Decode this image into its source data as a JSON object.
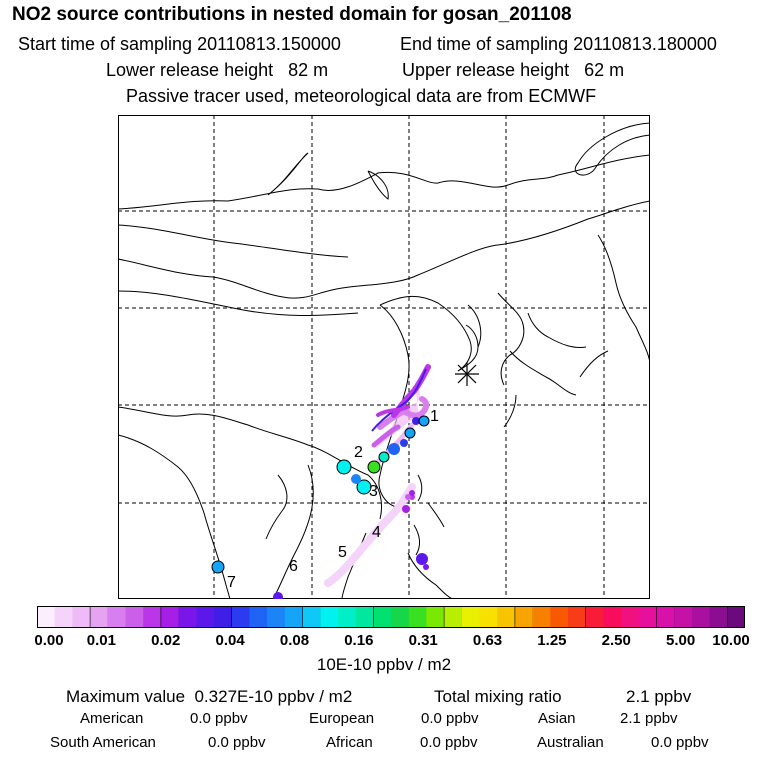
{
  "header": {
    "title": "NO2 source contributions in nested domain for gosan_201108",
    "start_label": "Start time of sampling 20110813.150000",
    "end_label": "End time of sampling 20110813.180000",
    "lower_label": "Lower release height   82 m",
    "upper_label": "Upper release height   62 m",
    "tracer_note": "Passive tracer used, meteorological data are from ECMWF"
  },
  "map": {
    "receptor_marker": "asterisk-icon",
    "source_labels": [
      "1",
      "2",
      "3",
      "4",
      "5",
      "6",
      "7"
    ]
  },
  "colorbar": {
    "ticks": [
      "0.00",
      "0.01",
      "0.02",
      "0.04",
      "0.08",
      "0.16",
      "0.31",
      "0.63",
      "1.25",
      "2.50",
      "5.00",
      "10.00"
    ],
    "colors": [
      "#fbeefd",
      "#f5d4fa",
      "#eebbf6",
      "#e6a3f2",
      "#d97eee",
      "#cc5fe9",
      "#bb36e8",
      "#a51fe6",
      "#7a16e8",
      "#5c18ea",
      "#3f1fe8",
      "#2b3cf0",
      "#1f64f4",
      "#1b84f6",
      "#14a5f8",
      "#0fc8f8",
      "#00f2f0",
      "#00eec8",
      "#00e8a0",
      "#00e070",
      "#16d64a",
      "#38e020",
      "#7ae800",
      "#b8ee00",
      "#e8f000",
      "#f8e000",
      "#f8c400",
      "#f8a400",
      "#f88000",
      "#f85800",
      "#f83c18",
      "#f81c38",
      "#f80c5c",
      "#f01080",
      "#e6109c",
      "#d812a8",
      "#c412a6",
      "#aa10a0",
      "#8c0c92",
      "#6a0a7c"
    ],
    "units_label": "10E-10 ppbv / m2"
  },
  "summary": {
    "max_label": "Maximum value  0.327E-10 ppbv / m2",
    "total_label": "Total mixing ratio",
    "total_value": "2.1 ppbv",
    "regions": [
      {
        "name": "American",
        "value": "0.0 ppbv"
      },
      {
        "name": "European",
        "value": "0.0 ppbv"
      },
      {
        "name": "Asian",
        "value": "2.1 ppbv"
      },
      {
        "name": "South American",
        "value": "0.0 ppbv"
      },
      {
        "name": "African",
        "value": "0.0 ppbv"
      },
      {
        "name": "Australian",
        "value": "0.0 ppbv"
      }
    ]
  }
}
